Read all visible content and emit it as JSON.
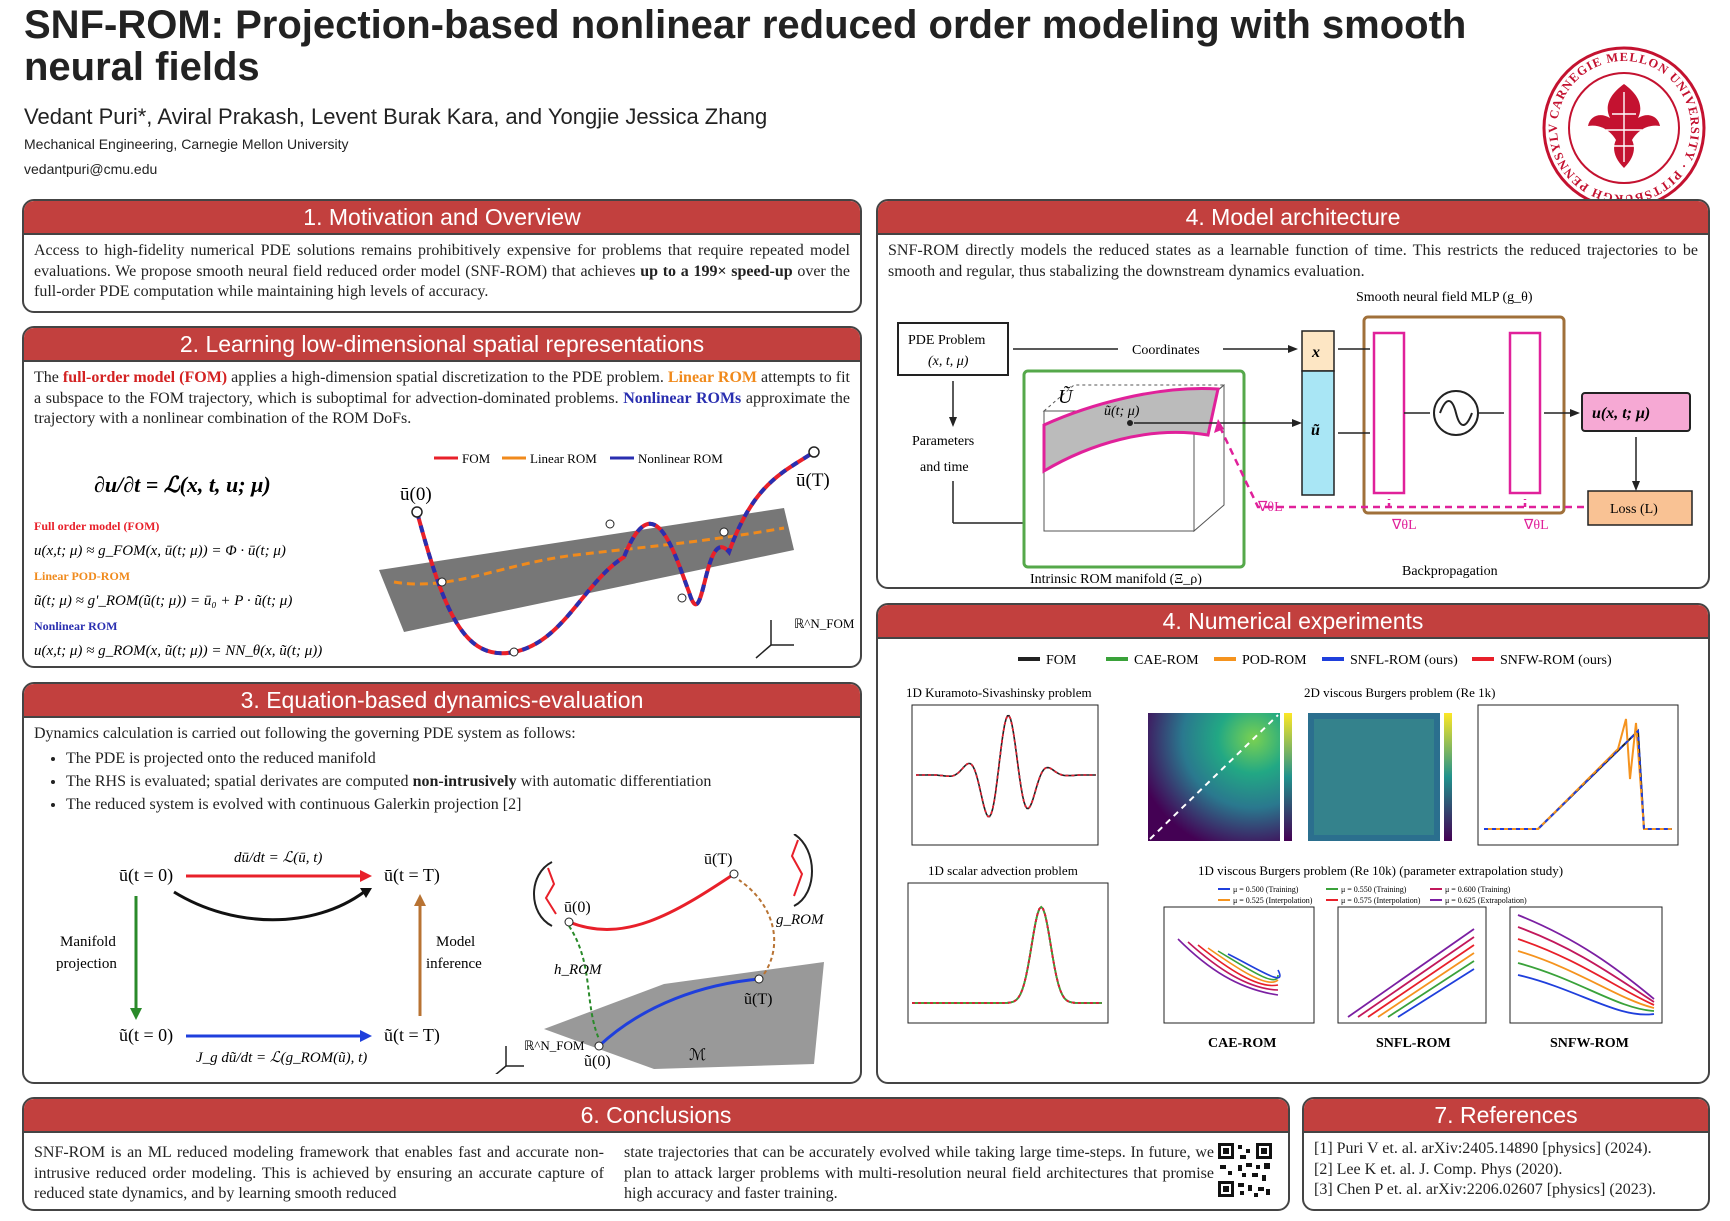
{
  "header": {
    "title": "SNF-ROM: Projection-based nonlinear reduced order modeling with smooth neural fields",
    "authors": "Vedant Puri*, Aviral Prakash, Levent Burak Kara, and Yongjie Jessica Zhang",
    "affiliation": "Mechanical Engineering, Carnegie Mellon University",
    "email": "vedantpuri@cmu.edu",
    "seal_text": "CARNEGIE MELLON UNIVERSITY · PITTSBURGH PENNSYLVANIA 1900"
  },
  "s1": {
    "title": "1. Motivation and Overview",
    "text_a": "Access to high-fidelity numerical PDE solutions remains prohibitively expensive for problems that require repeated model evaluations. We propose smooth neural field reduced order model (SNF-ROM) that achieves ",
    "text_b": "up to a 199× speed-up",
    "text_c": " over the full-order PDE computation while maintaining high levels of accuracy."
  },
  "s2": {
    "title": "2. Learning low-dimensional spatial representations",
    "t1": "The ",
    "t2": "full-order model (FOM)",
    "t3": " applies a high-dimension spatial discretization to the PDE problem. ",
    "t4": "Linear ROM",
    "t5": " attempts to fit a subspace to the FOM trajectory, which is suboptimal for advection-dominated problems. ",
    "t6": "Nonlinear ROMs",
    "t7": " approximate the trajectory with a nonlinear combination of the ROM DoFs.",
    "eq_main": "∂u/∂t = ℒ(x, t, u; μ)",
    "fom_label": "Full order model (FOM)",
    "fom_eq": "u(x,t; μ) ≈ g_FOM(x, ū(t; μ)) = Φ · ū(t; μ)",
    "lin_label": "Linear POD-ROM",
    "lin_eq": "ũ(t; μ) ≈ g'_ROM(ũ(t; μ)) = ū₀ + P · ũ(t; μ)",
    "nl_label": "Nonlinear ROM",
    "nl_eq": "u(x,t; μ) ≈ g_ROM(x, ũ(t; μ)) = NN_θ(x, ũ(t; μ))",
    "legend_fom": "FOM",
    "legend_lin": "Linear ROM",
    "legend_nl": "Nonlinear ROM",
    "u0": "ū(0)",
    "uT": "ū(T)",
    "rn": "ℝ^N_FOM"
  },
  "s3": {
    "title": "3. Equation-based dynamics-evaluation",
    "intro": "Dynamics calculation is carried out following the governing PDE system as follows:",
    "b1": "The PDE is projected onto the reduced manifold",
    "b2a": "The RHS is evaluated; spatial derivates are computed ",
    "b2b": "non-intrusively",
    "b2c": " with automatic differentiation",
    "b3": "The reduced system is evolved with continuous Galerkin projection [2]",
    "ut0_top": "ū(t = 0)",
    "utT_top": "ū(t = T)",
    "ut0_bot": "ũ(t = 0)",
    "utT_bot": "ũ(t = T)",
    "eq_top": "dū/dt = ℒ(ū, t)",
    "eq_bot": "J_g dũ/dt = ℒ(g_ROM(ũ), t)",
    "manifold1": "Manifold",
    "manifold2": "projection",
    "model1": "Model",
    "model2": "inference",
    "d_u0": "ū(0)",
    "d_uT": "ū(T)",
    "d_ut0": "ũ(0)",
    "d_utT": "ũ(T)",
    "h_rom": "h_ROM",
    "g_rom": "g_ROM",
    "rn": "ℝ^N_FOM",
    "M": "ℳ"
  },
  "s4a": {
    "title": "4. Model architecture",
    "text": "SNF-ROM directly models the reduced states as a learnable function of time. This restricts the reduced trajectories to be smooth and regular, thus stabalizing the downstream dynamics evaluation.",
    "mlp_title": "Smooth neural field MLP (g_θ)",
    "pde_box1": "PDE Problem",
    "pde_box2": "(x, t, μ)",
    "coords": "Coordinates",
    "params1": "Parameters",
    "params2": "and time",
    "utilde_label": "Ũ",
    "u_t_mu": "ũ(t; μ)",
    "x_box": "x",
    "u_box": "ũ",
    "output": "u(x, t; μ)",
    "loss": "Loss (L)",
    "backprop": "Backpropagation",
    "grad": "∇θL",
    "manifold": "Intrinsic ROM manifold (Ξ_ρ)"
  },
  "s4b": {
    "title": "4. Numerical experiments",
    "legend": [
      "FOM",
      "CAE-ROM",
      "POD-ROM",
      "SNFL-ROM (ours)",
      "SNFW-ROM (ours)"
    ],
    "legend_colors": [
      "#222222",
      "#3aa23a",
      "#f5931e",
      "#1f3fdc",
      "#e8202a"
    ],
    "ks_title": "1D Kuramoto-Sivashinsky problem",
    "burg2d_title": "2D viscous Burgers problem (Re 1k)",
    "adv_title": "1D scalar advection problem",
    "burg1d_title": "1D viscous Burgers problem (Re 10k) (parameter extrapolation study)",
    "mu_legend": [
      "μ = 0.500 (Training)",
      "μ = 0.550 (Training)",
      "μ = 0.600 (Training)",
      "μ = 0.525 (Interpolation)",
      "μ = 0.575 (Interpolation)",
      "μ = 0.625 (Extrapolation)"
    ],
    "cae": "CAE-ROM",
    "snfl": "SNFL-ROM",
    "snfw": "SNFW-ROM"
  },
  "s6": {
    "title": "6. Conclusions",
    "col1": "SNF-ROM is an ML reduced modeling framework that enables fast and accurate non-intrusive reduced order modeling. This is achieved by ensuring an accurate capture of reduced state dynamics, and by learning smooth reduced",
    "col2": "state trajectories that can be accurately evolved while taking large time-steps. In future, we plan to attack larger problems with multi-resolution neural field architectures that promise high accuracy and faster training."
  },
  "s7": {
    "title": "7. References",
    "refs": [
      "[1] Puri V et. al. arXiv:2405.14890 [physics] (2024).",
      "[2] Lee K et. al. J. Comp. Phys (2020).",
      "[3] Chen P et. al. arXiv:2206.02607 [physics] (2023)."
    ]
  },
  "colors": {
    "accent": "#c2403e",
    "fom": "#e8202a",
    "linear": "#f08a1c",
    "nonlinear": "#2a2fb0",
    "cmu_red": "#c41230"
  }
}
